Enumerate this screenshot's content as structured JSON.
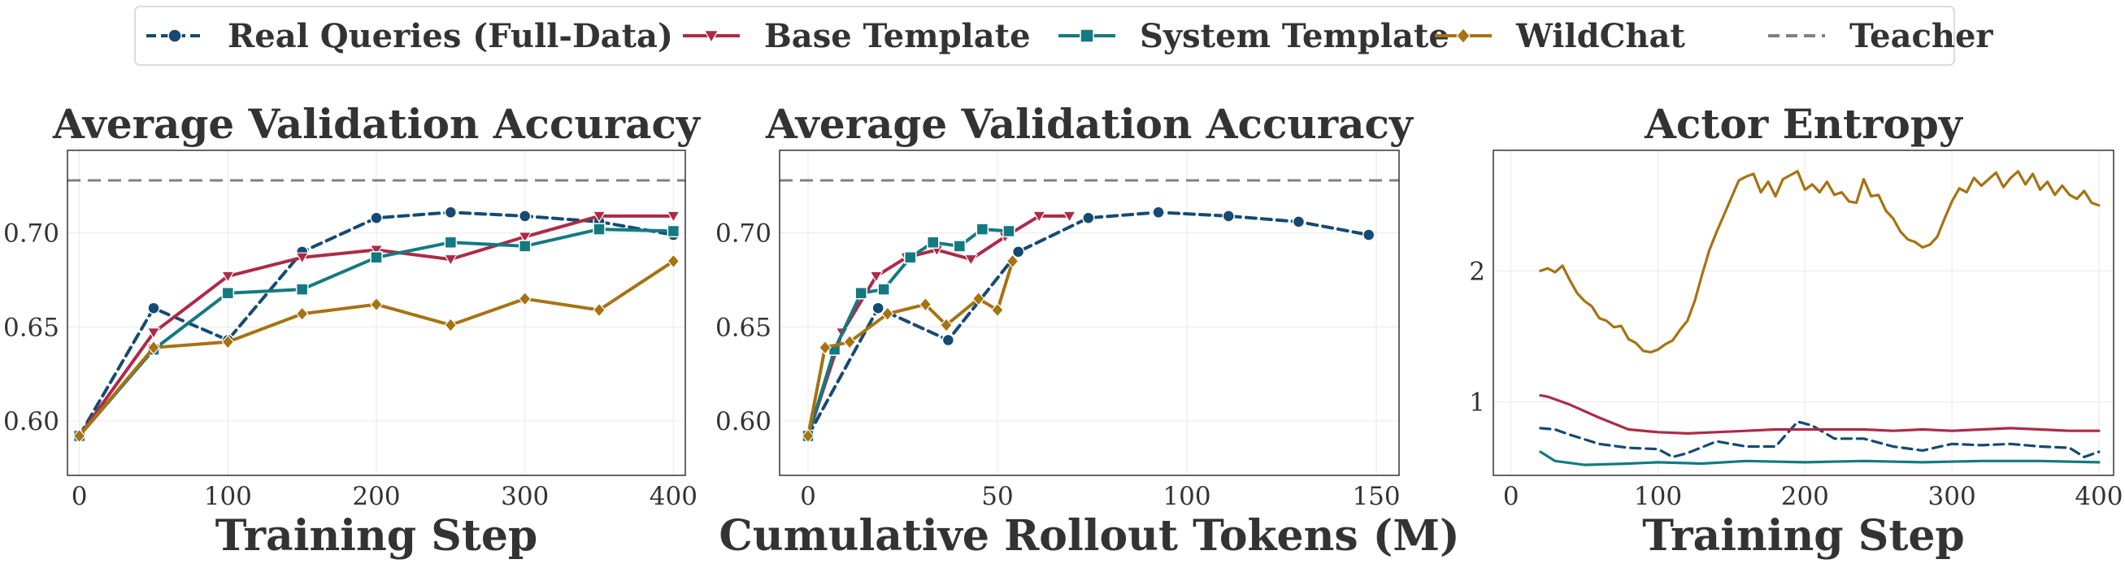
{
  "colors": {
    "real": "#154a73",
    "base": "#ad2a47",
    "system": "#137a80",
    "wildchat": "#a67312",
    "teacher": "#808080",
    "grid": "#ececec",
    "frame": "#333333"
  },
  "legend": {
    "items": [
      {
        "key": "real",
        "label": "Real Queries (Full-Data)",
        "style": "dashed",
        "marker": "circle"
      },
      {
        "key": "base",
        "label": "Base Template",
        "style": "solid",
        "marker": "triangle-down"
      },
      {
        "key": "system",
        "label": "System Template",
        "style": "solid",
        "marker": "square"
      },
      {
        "key": "wildchat",
        "label": "WildChat",
        "style": "solid",
        "marker": "diamond"
      },
      {
        "key": "teacher",
        "label": "Teacher",
        "style": "dashed",
        "marker": "none"
      }
    ]
  },
  "chart_data": [
    {
      "type": "line",
      "title": "Average Validation Accuracy",
      "xlabel": "Training Step",
      "ylabel": "",
      "xlim": [
        -8,
        408
      ],
      "ylim": [
        0.571,
        0.744
      ],
      "xticks": [
        0,
        100,
        200,
        300,
        400
      ],
      "yticks": [
        0.6,
        0.65,
        0.7
      ],
      "ytick_labels": [
        "0.60",
        "0.65",
        "0.70"
      ],
      "grid": true,
      "teacher": 0.728,
      "series": [
        {
          "name": "Real Queries (Full-Data)",
          "key": "real",
          "x": [
            0,
            50,
            100,
            150,
            200,
            250,
            300,
            350,
            400
          ],
          "y": [
            0.592,
            0.66,
            0.643,
            0.69,
            0.708,
            0.711,
            0.709,
            0.706,
            0.699
          ]
        },
        {
          "name": "Base Template",
          "key": "base",
          "x": [
            0,
            50,
            100,
            150,
            200,
            250,
            300,
            350,
            400
          ],
          "y": [
            0.592,
            0.647,
            0.677,
            0.687,
            0.691,
            0.686,
            0.698,
            0.709,
            0.709
          ]
        },
        {
          "name": "System Template",
          "key": "system",
          "x": [
            0,
            50,
            100,
            150,
            200,
            250,
            300,
            350,
            400
          ],
          "y": [
            0.592,
            0.638,
            0.668,
            0.67,
            0.687,
            0.695,
            0.693,
            0.702,
            0.701
          ]
        },
        {
          "name": "WildChat",
          "key": "wildchat",
          "x": [
            0,
            50,
            100,
            150,
            200,
            250,
            300,
            350,
            400
          ],
          "y": [
            0.592,
            0.639,
            0.642,
            0.657,
            0.662,
            0.651,
            0.665,
            0.659,
            0.685
          ]
        }
      ]
    },
    {
      "type": "line",
      "title": "Average Validation Accuracy",
      "xlabel": "Cumulative Rollout Tokens (M)",
      "ylabel": "",
      "xlim": [
        -7.5,
        156
      ],
      "ylim": [
        0.571,
        0.744
      ],
      "xticks": [
        0,
        50,
        100,
        150
      ],
      "yticks": [
        0.6,
        0.65,
        0.7
      ],
      "ytick_labels": [
        "0.60",
        "0.65",
        "0.70"
      ],
      "grid": true,
      "teacher": 0.728,
      "series": [
        {
          "name": "Real Queries (Full-Data)",
          "key": "real",
          "x": [
            0,
            18.5,
            37,
            55.5,
            74,
            92.5,
            111,
            129.5,
            148
          ],
          "y": [
            0.592,
            0.66,
            0.643,
            0.69,
            0.708,
            0.711,
            0.709,
            0.706,
            0.699
          ]
        },
        {
          "name": "Base Template",
          "key": "base",
          "x": [
            0,
            9,
            18,
            26,
            34,
            43,
            52,
            61,
            69
          ],
          "y": [
            0.592,
            0.647,
            0.677,
            0.687,
            0.691,
            0.686,
            0.698,
            0.709,
            0.709
          ]
        },
        {
          "name": "System Template",
          "key": "system",
          "x": [
            0,
            7,
            14,
            20,
            27,
            33,
            40,
            46,
            53
          ],
          "y": [
            0.592,
            0.638,
            0.668,
            0.67,
            0.687,
            0.695,
            0.693,
            0.702,
            0.701
          ]
        },
        {
          "name": "WildChat",
          "key": "wildchat",
          "x": [
            0,
            4.5,
            11,
            21,
            31,
            36.5,
            45,
            50,
            54
          ],
          "y": [
            0.592,
            0.639,
            0.642,
            0.657,
            0.662,
            0.651,
            0.665,
            0.659,
            0.685
          ]
        }
      ]
    },
    {
      "type": "line",
      "title": "Actor Entropy",
      "xlabel": "Training Step",
      "ylabel": "",
      "xlim": [
        -12,
        410
      ],
      "ylim": [
        0.44,
        2.92
      ],
      "xticks": [
        0,
        100,
        200,
        300,
        400
      ],
      "yticks": [
        1,
        2
      ],
      "ytick_labels": [
        "1",
        "2"
      ],
      "grid": true,
      "series": [
        {
          "name": "Real Queries (Full-Data)",
          "key": "real",
          "style": "dashed",
          "x": [
            20,
            30,
            40,
            60,
            80,
            100,
            110,
            120,
            140,
            160,
            180,
            195,
            205,
            220,
            240,
            260,
            280,
            300,
            320,
            340,
            360,
            380,
            390,
            400
          ],
          "y": [
            0.8,
            0.79,
            0.75,
            0.68,
            0.65,
            0.64,
            0.58,
            0.61,
            0.7,
            0.66,
            0.66,
            0.85,
            0.82,
            0.72,
            0.72,
            0.66,
            0.63,
            0.68,
            0.67,
            0.68,
            0.66,
            0.65,
            0.58,
            0.62
          ]
        },
        {
          "name": "Base Template",
          "key": "base",
          "style": "solid",
          "x": [
            20,
            25,
            40,
            60,
            80,
            100,
            120,
            140,
            160,
            180,
            200,
            220,
            240,
            260,
            280,
            300,
            320,
            340,
            360,
            380,
            400
          ],
          "y": [
            1.05,
            1.04,
            0.98,
            0.88,
            0.79,
            0.77,
            0.76,
            0.77,
            0.78,
            0.79,
            0.79,
            0.79,
            0.79,
            0.78,
            0.79,
            0.78,
            0.79,
            0.8,
            0.79,
            0.78,
            0.78
          ]
        },
        {
          "name": "System Template",
          "key": "system",
          "style": "solid",
          "x": [
            20,
            30,
            50,
            80,
            100,
            130,
            160,
            200,
            240,
            280,
            320,
            360,
            400
          ],
          "y": [
            0.62,
            0.55,
            0.52,
            0.53,
            0.54,
            0.53,
            0.55,
            0.54,
            0.55,
            0.54,
            0.55,
            0.55,
            0.54
          ]
        },
        {
          "name": "WildChat",
          "key": "wildchat",
          "style": "solid",
          "x": [
            20,
            25,
            30,
            35,
            40,
            45,
            50,
            55,
            60,
            65,
            70,
            75,
            80,
            85,
            90,
            95,
            100,
            105,
            110,
            115,
            120,
            125,
            130,
            135,
            140,
            145,
            150,
            155,
            160,
            165,
            170,
            175,
            180,
            185,
            190,
            195,
            200,
            205,
            210,
            215,
            220,
            225,
            230,
            235,
            240,
            245,
            250,
            255,
            260,
            265,
            270,
            275,
            280,
            285,
            290,
            295,
            300,
            305,
            310,
            315,
            320,
            325,
            330,
            335,
            340,
            345,
            350,
            355,
            360,
            365,
            370,
            375,
            380,
            385,
            390,
            395,
            400
          ],
          "y": [
            2.0,
            2.02,
            1.99,
            2.04,
            1.93,
            1.83,
            1.77,
            1.73,
            1.64,
            1.62,
            1.57,
            1.58,
            1.48,
            1.45,
            1.39,
            1.38,
            1.4,
            1.44,
            1.47,
            1.55,
            1.62,
            1.77,
            1.97,
            2.16,
            2.3,
            2.43,
            2.56,
            2.69,
            2.72,
            2.74,
            2.6,
            2.68,
            2.57,
            2.7,
            2.73,
            2.76,
            2.62,
            2.66,
            2.6,
            2.68,
            2.58,
            2.6,
            2.53,
            2.52,
            2.7,
            2.57,
            2.58,
            2.46,
            2.4,
            2.3,
            2.24,
            2.22,
            2.18,
            2.2,
            2.26,
            2.4,
            2.53,
            2.63,
            2.6,
            2.71,
            2.65,
            2.7,
            2.75,
            2.64,
            2.71,
            2.76,
            2.66,
            2.74,
            2.62,
            2.68,
            2.58,
            2.65,
            2.58,
            2.55,
            2.61,
            2.52,
            2.5
          ]
        }
      ]
    }
  ]
}
